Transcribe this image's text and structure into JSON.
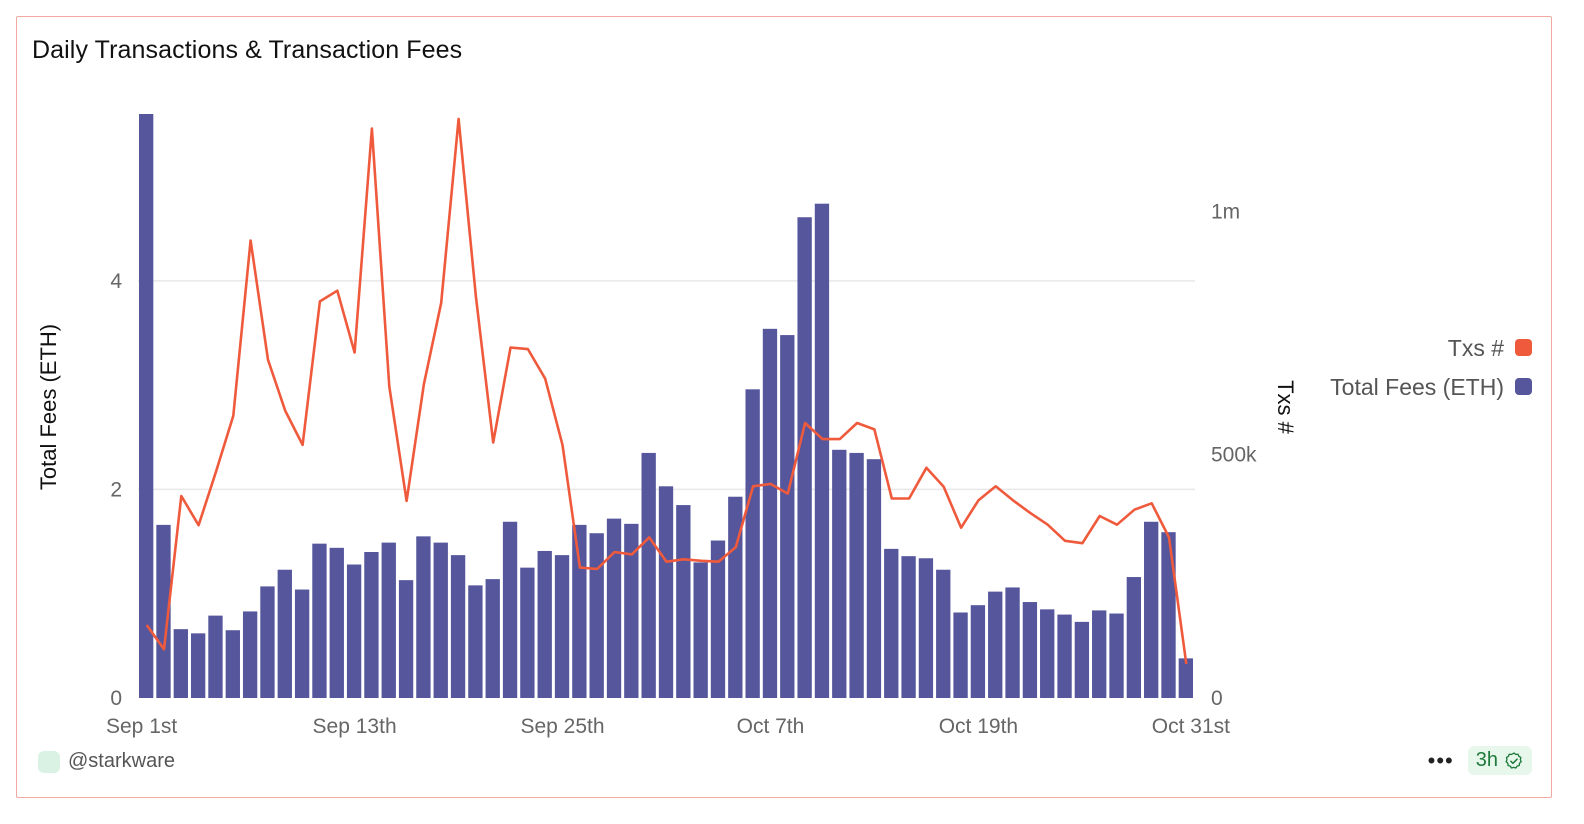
{
  "header": {
    "title": "Daily Transactions & Transaction Fees"
  },
  "footer": {
    "author": "@starkware",
    "freshness": "3h",
    "more_icon": "more-horizontal-icon",
    "check_icon": "check-badge-icon"
  },
  "colors": {
    "bars": "#55569c",
    "line": "#ef5a3c",
    "grid": "#e8e8e8",
    "frame": "#f4a9a0"
  },
  "chart_data": {
    "type": "bar",
    "title": "Daily Transactions & Transaction Fees",
    "xlabel": "",
    "ylabel": "Total Fees (ETH)",
    "y2label": "Txs #",
    "ylim": [
      0,
      5.6
    ],
    "y2lim": [
      0,
      1200000
    ],
    "y_ticks": [
      "0",
      "2",
      "4"
    ],
    "y_tick_values": [
      0,
      2,
      4
    ],
    "y2_ticks": [
      "0",
      "500k",
      "1m"
    ],
    "y2_tick_values": [
      0,
      500000,
      1000000
    ],
    "x_ticks": [
      "Sep 1st",
      "Sep 13th",
      "Sep 25th",
      "Oct 7th",
      "Oct 19th",
      "Oct 31st"
    ],
    "x_tick_index": [
      0,
      12,
      24,
      36,
      48,
      60
    ],
    "legend": [
      "Txs #",
      "Total Fees (ETH)"
    ],
    "legend_position": "right",
    "categories": [
      "Sep 1",
      "Sep 2",
      "Sep 3",
      "Sep 4",
      "Sep 5",
      "Sep 6",
      "Sep 7",
      "Sep 8",
      "Sep 9",
      "Sep 10",
      "Sep 11",
      "Sep 12",
      "Sep 13",
      "Sep 14",
      "Sep 15",
      "Sep 16",
      "Sep 17",
      "Sep 18",
      "Sep 19",
      "Sep 20",
      "Sep 21",
      "Sep 22",
      "Sep 23",
      "Sep 24",
      "Sep 25",
      "Sep 26",
      "Sep 27",
      "Sep 28",
      "Sep 29",
      "Sep 30",
      "Oct 1",
      "Oct 2",
      "Oct 3",
      "Oct 4",
      "Oct 5",
      "Oct 6",
      "Oct 7",
      "Oct 8",
      "Oct 9",
      "Oct 10",
      "Oct 11",
      "Oct 12",
      "Oct 13",
      "Oct 14",
      "Oct 15",
      "Oct 16",
      "Oct 17",
      "Oct 18",
      "Oct 19",
      "Oct 20",
      "Oct 21",
      "Oct 22",
      "Oct 23",
      "Oct 24",
      "Oct 25",
      "Oct 26",
      "Oct 27",
      "Oct 28",
      "Oct 29",
      "Oct 30",
      "Oct 31"
    ],
    "series": [
      {
        "name": "Total Fees (ETH)",
        "type": "bar",
        "axis": "left",
        "values": [
          5.6,
          1.66,
          0.66,
          0.62,
          0.79,
          0.65,
          0.83,
          1.07,
          1.23,
          1.04,
          1.48,
          1.44,
          1.28,
          1.4,
          1.49,
          1.13,
          1.55,
          1.49,
          1.37,
          1.08,
          1.14,
          1.69,
          1.25,
          1.41,
          1.37,
          1.66,
          1.58,
          1.72,
          1.67,
          2.35,
          2.03,
          1.85,
          1.3,
          1.51,
          1.93,
          2.96,
          3.54,
          3.48,
          4.61,
          4.74,
          2.38,
          2.35,
          2.29,
          1.43,
          1.36,
          1.34,
          1.23,
          0.82,
          0.89,
          1.02,
          1.06,
          0.92,
          0.85,
          0.8,
          0.73,
          0.84,
          0.81,
          1.16,
          1.69,
          1.59,
          0.38
        ]
      },
      {
        "name": "Txs #",
        "type": "line",
        "axis": "right",
        "values": [
          150000,
          100000,
          415000,
          355000,
          465000,
          580000,
          940000,
          695000,
          590000,
          520000,
          815000,
          837000,
          710000,
          1170000,
          640000,
          405000,
          645000,
          812000,
          1190000,
          825000,
          525000,
          720000,
          717000,
          656000,
          520000,
          268000,
          265000,
          300000,
          295000,
          330000,
          280000,
          285000,
          282000,
          280000,
          310000,
          435000,
          440000,
          420000,
          565000,
          532000,
          532000,
          565000,
          552000,
          410000,
          410000,
          473000,
          434000,
          350000,
          406000,
          435000,
          406000,
          380000,
          356000,
          323000,
          318000,
          374000,
          356000,
          387000,
          400000,
          330000,
          70000
        ]
      }
    ]
  }
}
